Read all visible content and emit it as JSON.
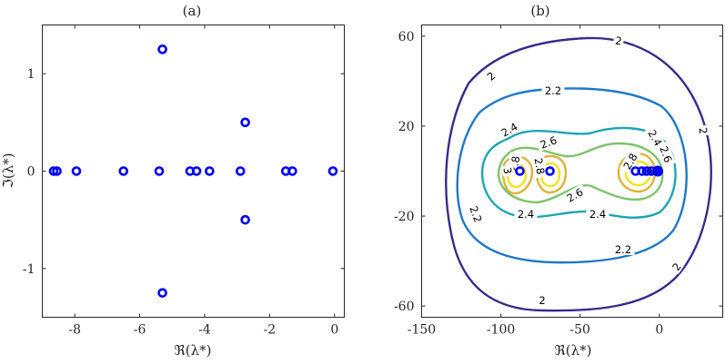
{
  "chart_data": [
    {
      "type": "scatter",
      "title": "(a)",
      "xlabel": "ℜ(λ*)",
      "ylabel": "ℑ(λ*)",
      "xlim": [
        -9,
        0.3
      ],
      "ylim": [
        -1.5,
        1.5
      ],
      "xticks": [
        -8,
        -6,
        -4,
        -2,
        0
      ],
      "yticks": [
        -1,
        0,
        1
      ],
      "marker": "open circle",
      "color": "#0000ff",
      "points": [
        {
          "x": -8.65,
          "y": 0
        },
        {
          "x": -8.55,
          "y": 0
        },
        {
          "x": -7.95,
          "y": 0
        },
        {
          "x": -6.5,
          "y": 0
        },
        {
          "x": -5.4,
          "y": 0
        },
        {
          "x": -4.45,
          "y": 0
        },
        {
          "x": -4.25,
          "y": 0
        },
        {
          "x": -3.85,
          "y": 0
        },
        {
          "x": -2.9,
          "y": 0
        },
        {
          "x": -1.5,
          "y": 0
        },
        {
          "x": -1.3,
          "y": 0
        },
        {
          "x": -0.05,
          "y": 0
        },
        {
          "x": -5.3,
          "y": 1.25
        },
        {
          "x": -5.3,
          "y": -1.25
        },
        {
          "x": -2.75,
          "y": 0.5
        },
        {
          "x": -2.75,
          "y": -0.5
        }
      ]
    },
    {
      "type": "contour",
      "title": "(b)",
      "xlabel": "ℜ(λ*)",
      "ylabel": "",
      "xlim": [
        -150,
        40
      ],
      "ylim": [
        -65,
        65
      ],
      "xticks": [
        -150,
        -100,
        -50,
        0
      ],
      "yticks": [
        -60,
        -20,
        20,
        60
      ],
      "levels": [
        {
          "value": 2,
          "label": "2",
          "color": "#3b2b8a"
        },
        {
          "value": 2.2,
          "label": "2.2",
          "color": "#1f78c8"
        },
        {
          "value": 2.4,
          "label": "2.4",
          "color": "#1aa6b0"
        },
        {
          "value": 2.6,
          "label": "2.6",
          "color": "#7cc36b"
        },
        {
          "value": 2.8,
          "label": "2.8",
          "color": "#e0b23a"
        },
        {
          "value": 3,
          "label": "3",
          "color": "#f2e21f"
        }
      ],
      "contour_labels": [
        "2",
        "2",
        "2",
        "2",
        "2",
        "2.2",
        "2.2",
        "2.2",
        "2.4",
        "2.4",
        "2.4",
        "2.4",
        "2.6",
        "2.6",
        "2.6",
        "2.8",
        "2.8",
        "2.8",
        "3",
        "3"
      ],
      "poles": [
        {
          "x": -88,
          "y": 0,
          "size": "small"
        },
        {
          "x": -69,
          "y": 0,
          "size": "small"
        },
        {
          "x": -15,
          "y": 0,
          "size": "small"
        },
        {
          "x": -11,
          "y": 0,
          "size": "small"
        },
        {
          "x": -8,
          "y": 0,
          "size": "small"
        },
        {
          "x": -5,
          "y": 0,
          "size": "small"
        },
        {
          "x": -1,
          "y": 0,
          "size": "large"
        }
      ]
    }
  ]
}
